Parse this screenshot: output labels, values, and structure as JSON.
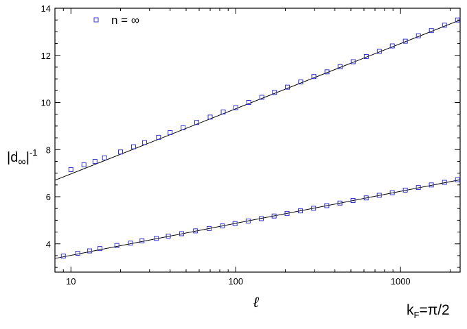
{
  "chart_data": {
    "type": "scatter",
    "title": "",
    "xlabel": "ℓ",
    "ylabel": "|d∞|⁻¹",
    "ylabel_parts": {
      "pre": "|d",
      "sub": "∞",
      "post": "|",
      "sup": "-1"
    },
    "corner_label": {
      "pre": "k",
      "sub": "F",
      "post": "=π/2"
    },
    "xscale": "log",
    "xlim": [
      8,
      2300
    ],
    "ylim": [
      2.8,
      14
    ],
    "x_ticks": [
      10,
      100,
      1000
    ],
    "x_tick_labels": [
      "10",
      "100",
      "1000"
    ],
    "y_ticks": [
      4,
      6,
      8,
      10,
      12,
      14
    ],
    "y_tick_labels": [
      "4",
      "6",
      "8",
      "10",
      "12",
      "14"
    ],
    "legend": {
      "placement": "top-left",
      "label": "n = ∞"
    },
    "marker_color": "#3333cc",
    "line_color": "#000000",
    "series": [
      {
        "x": [
          10,
          12,
          14,
          16,
          20,
          24,
          28,
          34,
          40,
          48,
          58,
          70,
          84,
          100,
          120,
          144,
          172,
          206,
          248,
          298,
          358,
          430,
          516,
          620,
          744,
          892,
          1070,
          1284,
          1540,
          1850,
          2220
        ],
        "y": [
          7.15,
          7.35,
          7.5,
          7.65,
          7.9,
          8.12,
          8.3,
          8.52,
          8.72,
          8.93,
          9.15,
          9.38,
          9.6,
          9.78,
          10.0,
          10.22,
          10.43,
          10.65,
          10.87,
          11.1,
          11.3,
          11.52,
          11.73,
          11.95,
          12.17,
          12.4,
          12.6,
          12.83,
          13.05,
          13.28,
          13.5
        ]
      },
      {
        "x": [
          9,
          11,
          13,
          15,
          19,
          23,
          27,
          33,
          39,
          47,
          57,
          69,
          83,
          99,
          119,
          143,
          171,
          205,
          247,
          297,
          357,
          429,
          515,
          619,
          743,
          891,
          1069,
          1283,
          1539,
          1849,
          2219
        ],
        "y": [
          3.48,
          3.6,
          3.7,
          3.8,
          3.93,
          4.03,
          4.13,
          4.23,
          4.33,
          4.43,
          4.55,
          4.65,
          4.76,
          4.86,
          4.97,
          5.07,
          5.18,
          5.29,
          5.4,
          5.51,
          5.62,
          5.73,
          5.84,
          5.95,
          6.06,
          6.17,
          6.28,
          6.39,
          6.5,
          6.61,
          6.72
        ]
      }
    ],
    "fit_lines": [
      {
        "x": [
          8,
          2300
        ],
        "y": [
          6.7,
          13.5
        ]
      },
      {
        "x": [
          8,
          2300
        ],
        "y": [
          3.38,
          6.72
        ]
      }
    ]
  }
}
